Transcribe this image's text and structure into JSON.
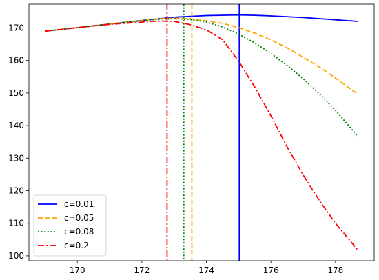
{
  "chart_data": {
    "type": "line",
    "title": "",
    "xlabel": "",
    "ylabel": "",
    "xlim": [
      168.5,
      179.2
    ],
    "ylim": [
      98.5,
      177.3
    ],
    "xticks": [
      "170",
      "172",
      "174",
      "176",
      "178"
    ],
    "yticks": [
      "100",
      "110",
      "120",
      "130",
      "140",
      "150",
      "160",
      "170"
    ],
    "grid": false,
    "legend_position": "lower-left",
    "series": [
      {
        "name": "c=0.01",
        "color": "#0000ff",
        "dash": "solid",
        "x": [
          169.0,
          170.0,
          171.0,
          172.0,
          173.0,
          174.0,
          175.0,
          175.5,
          176.0,
          177.0,
          178.0,
          178.7
        ],
        "y": [
          169.0,
          170.1,
          171.2,
          172.3,
          173.3,
          173.8,
          174.0,
          173.9,
          173.7,
          173.2,
          172.5,
          172.0
        ],
        "vline": 175.02
      },
      {
        "name": "c=0.05",
        "color": "#ffa500",
        "dash": "dashed",
        "x": [
          169.0,
          170.0,
          171.0,
          172.0,
          172.5,
          173.0,
          173.5,
          174.0,
          174.5,
          175.0,
          175.5,
          176.0,
          176.5,
          177.0,
          177.5,
          178.0,
          178.7
        ],
        "y": [
          169.0,
          170.1,
          171.2,
          172.3,
          172.8,
          173.0,
          172.8,
          172.2,
          171.4,
          170.1,
          168.4,
          166.3,
          163.9,
          161.0,
          158.0,
          154.6,
          149.6
        ],
        "vline": 173.55
      },
      {
        "name": "c=0.08",
        "color": "#008000",
        "dash": "dotted",
        "x": [
          169.0,
          170.0,
          171.0,
          172.0,
          172.5,
          173.0,
          173.5,
          174.0,
          174.5,
          175.0,
          175.5,
          176.0,
          176.5,
          177.0,
          177.5,
          178.0,
          178.7
        ],
        "y": [
          169.0,
          170.1,
          171.2,
          172.2,
          172.7,
          172.8,
          172.6,
          171.8,
          170.3,
          168.1,
          165.4,
          162.2,
          158.5,
          154.4,
          149.8,
          144.7,
          136.6
        ],
        "vline": 173.3
      },
      {
        "name": "c=0.2",
        "color": "#ff0000",
        "dash": "dashdot",
        "x": [
          169.0,
          170.0,
          171.0,
          172.0,
          172.5,
          173.0,
          173.5,
          174.0,
          174.5,
          175.0,
          175.5,
          176.0,
          176.5,
          177.0,
          177.5,
          178.0,
          178.7
        ],
        "y": [
          169.0,
          170.1,
          171.1,
          171.8,
          172.1,
          172.0,
          171.0,
          169.4,
          166.4,
          159.8,
          151.8,
          143.0,
          133.5,
          124.8,
          117.0,
          110.0,
          101.7
        ],
        "vline": 172.78
      }
    ]
  }
}
